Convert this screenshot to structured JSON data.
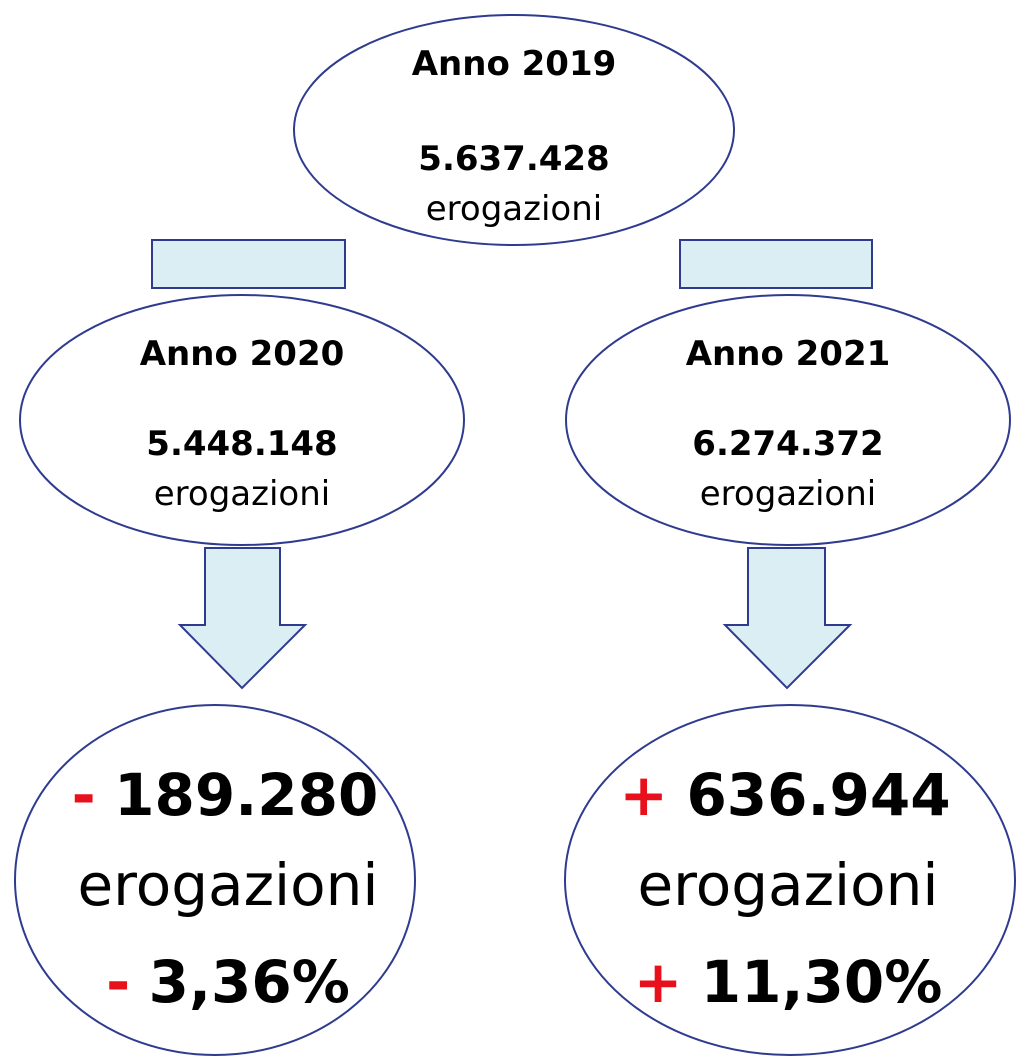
{
  "nodes": [
    {
      "title": "Anno 2019",
      "value": "5.637.428",
      "unit": "erogazioni"
    },
    {
      "title": "Anno 2020",
      "value": "5.448.148",
      "unit": "erogazioni"
    },
    {
      "title": "Anno 2021",
      "value": "6.274.372",
      "unit": "erogazioni"
    }
  ],
  "results": [
    {
      "sign": "-",
      "value": "189.280",
      "unit": "erogazioni",
      "pct_sign": "-",
      "pct": "3,36%"
    },
    {
      "sign": "+",
      "value": "636.944",
      "unit": "erogazioni",
      "pct_sign": "+",
      "pct": "11,30%"
    }
  ]
}
